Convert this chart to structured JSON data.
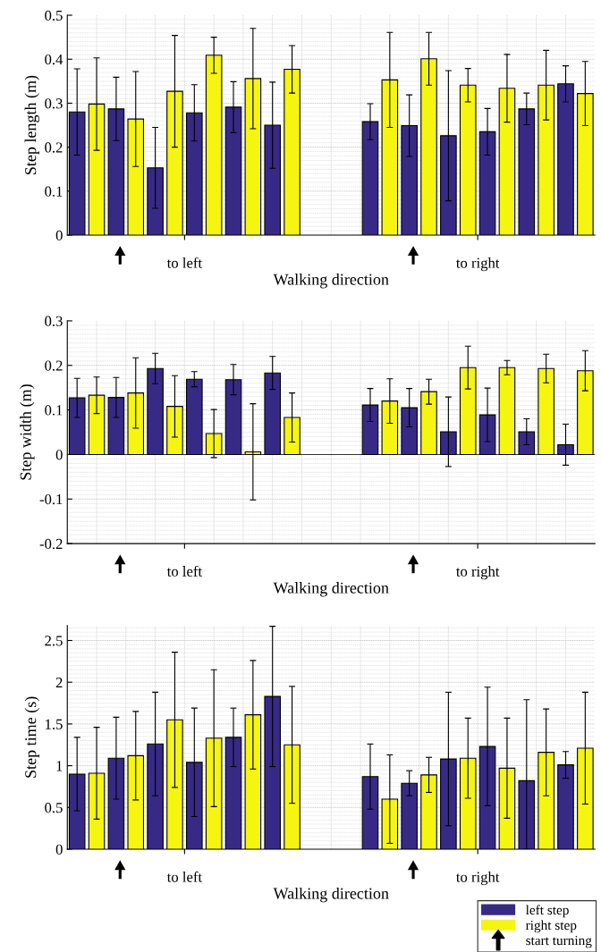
{
  "chart_data": [
    {
      "type": "bar",
      "ylabel": "Step length (m)",
      "xlabel": "Walking direction",
      "categories": [
        null,
        null,
        null,
        null,
        null,
        null,
        null,
        null,
        null,
        null,
        null,
        null,
        null,
        null,
        null,
        null,
        null,
        null,
        null,
        null,
        null,
        null,
        null,
        null,
        null,
        null,
        null
      ],
      "ylim": [
        0,
        0.5
      ],
      "yticks": [
        0,
        0.1,
        0.2,
        0.3,
        0.4,
        0.5
      ],
      "grid": true,
      "legend": false,
      "annotations": [
        "to left",
        "to right"
      ],
      "series": [
        {
          "color": "#372a87",
          "values": [
            0.28,
            null,
            0.287,
            null,
            0.153,
            null,
            0.278,
            null,
            0.291,
            null,
            0.25,
            null,
            null,
            null,
            null,
            0.258,
            null,
            0.249,
            null,
            0.226,
            null,
            0.235,
            null,
            0.287,
            null,
            0.344,
            null
          ],
          "errors": [
            0.098,
            null,
            0.072,
            null,
            0.092,
            null,
            0.064,
            null,
            0.058,
            null,
            0.098,
            null,
            null,
            null,
            null,
            0.041,
            null,
            0.07,
            null,
            0.148,
            null,
            0.053,
            null,
            0.036,
            null,
            0.041,
            null
          ]
        },
        {
          "color": "#f5f50f",
          "values": [
            null,
            0.298,
            null,
            0.264,
            null,
            0.327,
            null,
            0.409,
            null,
            0.356,
            null,
            0.377,
            null,
            null,
            null,
            null,
            0.353,
            null,
            0.401,
            null,
            0.341,
            null,
            0.334,
            null,
            0.341,
            null,
            0.322
          ],
          "errors": [
            null,
            0.105,
            null,
            0.108,
            null,
            0.127,
            null,
            0.041,
            null,
            0.114,
            null,
            0.054,
            null,
            null,
            null,
            null,
            0.108,
            null,
            0.06,
            null,
            0.038,
            null,
            0.077,
            null,
            0.079,
            null,
            0.073
          ]
        }
      ]
    },
    {
      "type": "bar",
      "ylabel": "Step width (m)",
      "xlabel": "Walking direction",
      "categories": [
        null,
        null,
        null,
        null,
        null,
        null,
        null,
        null,
        null,
        null,
        null,
        null,
        null,
        null,
        null,
        null,
        null,
        null,
        null,
        null,
        null,
        null,
        null,
        null,
        null,
        null,
        null
      ],
      "ylim": [
        -0.2,
        0.3
      ],
      "yticks": [
        -0.2,
        -0.1,
        0,
        0.1,
        0.2,
        0.3
      ],
      "grid": true,
      "legend": false,
      "annotations": [
        "to left",
        "to right"
      ],
      "series": [
        {
          "color": "#372a87",
          "values": [
            0.127,
            null,
            0.128,
            null,
            0.193,
            null,
            0.169,
            null,
            0.168,
            null,
            0.183,
            null,
            null,
            null,
            null,
            0.111,
            null,
            0.105,
            null,
            0.051,
            null,
            0.089,
            null,
            0.051,
            null,
            0.022,
            null
          ],
          "errors": [
            0.044,
            null,
            0.045,
            null,
            0.034,
            null,
            0.017,
            null,
            0.034,
            null,
            0.037,
            null,
            null,
            null,
            null,
            0.037,
            null,
            0.043,
            null,
            0.078,
            null,
            0.06,
            null,
            0.029,
            null,
            0.046,
            null
          ]
        },
        {
          "color": "#f5f50f",
          "values": [
            null,
            0.133,
            null,
            0.138,
            null,
            0.108,
            null,
            0.047,
            null,
            0.006,
            null,
            0.083,
            null,
            null,
            null,
            null,
            0.12,
            null,
            0.141,
            null,
            0.195,
            null,
            0.195,
            null,
            0.193,
            null,
            0.188
          ],
          "errors": [
            null,
            0.041,
            null,
            0.079,
            null,
            0.069,
            null,
            0.054,
            null,
            0.108,
            null,
            0.055,
            null,
            null,
            null,
            null,
            0.05,
            null,
            0.028,
            null,
            0.048,
            null,
            0.016,
            null,
            0.032,
            null,
            0.045
          ]
        }
      ]
    },
    {
      "type": "bar",
      "ylabel": "Step time (s)",
      "xlabel": "Walking direction",
      "categories": [
        null,
        null,
        null,
        null,
        null,
        null,
        null,
        null,
        null,
        null,
        null,
        null,
        null,
        null,
        null,
        null,
        null,
        null,
        null,
        null,
        null,
        null,
        null,
        null,
        null,
        null,
        null
      ],
      "ylim": [
        0,
        2.68
      ],
      "yticks": [
        0,
        0.5,
        1,
        1.5,
        2,
        2.5
      ],
      "grid": true,
      "legend": "bottom right",
      "annotations": [
        "to left",
        "to right",
        "start turning"
      ],
      "series": [
        {
          "name": "left step",
          "color": "#372a87",
          "values": [
            0.9,
            null,
            1.09,
            null,
            1.26,
            null,
            1.04,
            null,
            1.34,
            null,
            1.83,
            null,
            null,
            null,
            null,
            0.87,
            null,
            0.79,
            null,
            1.08,
            null,
            1.23,
            null,
            0.82,
            null,
            1.01,
            null
          ],
          "errors": [
            0.44,
            null,
            0.49,
            null,
            0.62,
            null,
            0.65,
            null,
            0.35,
            null,
            0.84,
            null,
            null,
            null,
            null,
            0.39,
            null,
            0.15,
            null,
            0.8,
            null,
            0.71,
            null,
            [
              0,
              1.79
            ],
            null,
            0.16,
            null
          ]
        },
        {
          "name": "right step",
          "color": "#f5f50f",
          "values": [
            null,
            0.91,
            null,
            1.12,
            null,
            1.55,
            null,
            1.33,
            null,
            1.61,
            null,
            1.25,
            null,
            null,
            null,
            null,
            0.6,
            null,
            0.89,
            null,
            1.09,
            null,
            0.97,
            null,
            1.16,
            null,
            1.21
          ],
          "errors": [
            null,
            0.55,
            null,
            0.53,
            null,
            0.81,
            null,
            0.82,
            null,
            0.65,
            null,
            0.7,
            null,
            null,
            null,
            null,
            0.53,
            null,
            0.21,
            null,
            0.48,
            null,
            0.6,
            null,
            0.52,
            null,
            0.67
          ]
        }
      ]
    }
  ]
}
